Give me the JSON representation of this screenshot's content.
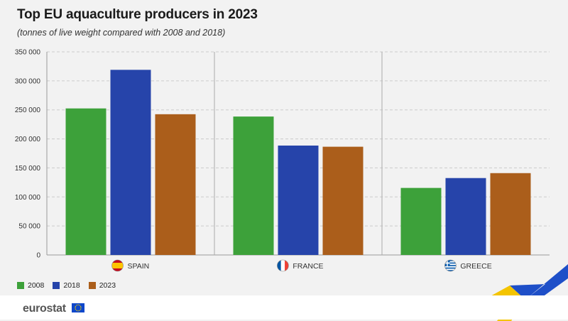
{
  "title": "Top EU aquaculture producers in 2023",
  "subtitle": "(tonnes of live weight compared with 2008 and 2018)",
  "logo": {
    "text": "eurostat"
  },
  "colors": {
    "2008": "#3da13a",
    "2018": "#2644aa",
    "2023": "#ab5e1b",
    "grid": "#cccccc",
    "background": "#f2f2f2"
  },
  "chart_data": {
    "type": "bar",
    "title": "Top EU aquaculture producers in 2023",
    "subtitle": "(tonnes of live weight compared with 2008 and 2018)",
    "categories": [
      "SPAIN",
      "FRANCE",
      "GREECE"
    ],
    "category_icons": [
      "spain-flag-icon",
      "france-flag-icon",
      "greece-flag-icon"
    ],
    "series": [
      {
        "name": "2008",
        "color": "#3da13a",
        "values": [
          252500,
          238500,
          115500
        ]
      },
      {
        "name": "2018",
        "color": "#2644aa",
        "values": [
          319000,
          188500,
          132500
        ]
      },
      {
        "name": "2023",
        "color": "#ab5e1b",
        "values": [
          242500,
          186500,
          141000
        ]
      }
    ],
    "ylim": [
      0,
      350000
    ],
    "yticks": [
      0,
      50000,
      100000,
      150000,
      200000,
      250000,
      300000,
      350000
    ],
    "ytick_labels": [
      "0",
      "50 000",
      "100 000",
      "150 000",
      "200 000",
      "250 000",
      "300 000",
      "350 000"
    ],
    "xlabel": "",
    "ylabel": "",
    "grid": "horizontal dashed",
    "legend": "bottom-left"
  }
}
